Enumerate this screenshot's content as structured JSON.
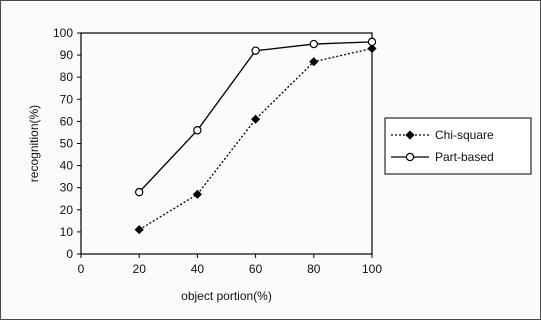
{
  "chart_data": {
    "type": "line",
    "title": "",
    "xlabel": "object portion(%)",
    "ylabel": "recognition(%)",
    "xlim": [
      0,
      100
    ],
    "ylim": [
      0,
      100
    ],
    "xticks": [
      0,
      20,
      40,
      60,
      80,
      100
    ],
    "yticks": [
      0,
      10,
      20,
      30,
      40,
      50,
      60,
      70,
      80,
      90,
      100
    ],
    "x_tick_labels": [
      "0",
      "20",
      "40",
      "60",
      "80",
      "100"
    ],
    "y_tick_labels": [
      "0",
      "10",
      "20",
      "30",
      "40",
      "50",
      "60",
      "70",
      "80",
      "90",
      "100"
    ],
    "grid": false,
    "legend_position": "right",
    "series": [
      {
        "name": "Chi-square",
        "x": [
          20,
          40,
          60,
          80,
          100
        ],
        "y": [
          11,
          27,
          61,
          87,
          93
        ],
        "line_style": "dotted",
        "marker": "filled-diamond",
        "color": "#000000"
      },
      {
        "name": "Part-based",
        "x": [
          20,
          40,
          60,
          80,
          100
        ],
        "y": [
          28,
          56,
          92,
          95,
          96
        ],
        "line_style": "solid",
        "marker": "open-circle",
        "color": "#000000"
      }
    ]
  }
}
